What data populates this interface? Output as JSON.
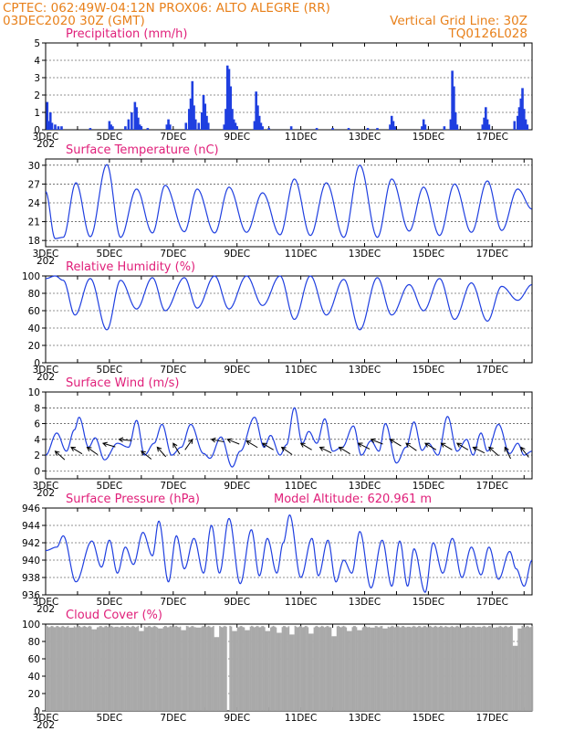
{
  "header": {
    "line1": "CPTEC:   062:49W-04:12N   PROX06: ALTO ALEGRE (RR)",
    "line2_left": "03DEC2020 30Z (GMT)",
    "line2_right": "Vertical Grid Line: 30Z",
    "line3_right": "TQ0126L028"
  },
  "colors": {
    "header": "#e8801a",
    "title": "#e0207a",
    "series": "#1f3fe0",
    "cloud": "#a9a9a9",
    "axis": "#000000"
  },
  "x_ticks": [
    "3DEC",
    "5DEC",
    "7DEC",
    "9DEC",
    "11DEC",
    "13DEC",
    "15DEC",
    "17DEC"
  ],
  "x_sub": "202",
  "chart_data": [
    {
      "id": "precip",
      "type": "bar",
      "title": "Precipitation (mm/h)",
      "ylim": [
        0,
        5
      ],
      "yticks": [
        0,
        1,
        2,
        3,
        4,
        5
      ],
      "xlim": [
        3,
        18.25
      ],
      "events": [
        [
          3.05,
          1.6
        ],
        [
          3.1,
          0.5
        ],
        [
          3.15,
          1.0
        ],
        [
          3.2,
          0.4
        ],
        [
          3.3,
          0.3
        ],
        [
          3.4,
          0.2
        ],
        [
          3.5,
          0.2
        ],
        [
          4.4,
          0.1
        ],
        [
          5.0,
          0.5
        ],
        [
          5.05,
          0.3
        ],
        [
          5.1,
          0.2
        ],
        [
          5.5,
          0.2
        ],
        [
          5.6,
          0.6
        ],
        [
          5.7,
          1.0
        ],
        [
          5.8,
          1.6
        ],
        [
          5.85,
          1.3
        ],
        [
          5.9,
          0.7
        ],
        [
          5.95,
          0.3
        ],
        [
          6.0,
          0.2
        ],
        [
          6.2,
          0.1
        ],
        [
          6.8,
          0.3
        ],
        [
          6.85,
          0.6
        ],
        [
          6.9,
          0.3
        ],
        [
          7.4,
          0.4
        ],
        [
          7.5,
          1.2
        ],
        [
          7.55,
          1.8
        ],
        [
          7.6,
          2.8
        ],
        [
          7.65,
          1.4
        ],
        [
          7.7,
          0.6
        ],
        [
          7.8,
          0.4
        ],
        [
          7.9,
          1.0
        ],
        [
          7.95,
          2.0
        ],
        [
          8.0,
          1.5
        ],
        [
          8.05,
          0.8
        ],
        [
          8.1,
          0.4
        ],
        [
          8.6,
          0.3
        ],
        [
          8.65,
          1.2
        ],
        [
          8.7,
          3.7
        ],
        [
          8.75,
          3.5
        ],
        [
          8.8,
          2.5
        ],
        [
          8.85,
          1.2
        ],
        [
          8.9,
          0.6
        ],
        [
          8.95,
          0.4
        ],
        [
          9.0,
          0.2
        ],
        [
          9.55,
          0.5
        ],
        [
          9.6,
          2.2
        ],
        [
          9.65,
          1.4
        ],
        [
          9.7,
          0.8
        ],
        [
          9.75,
          0.4
        ],
        [
          9.8,
          0.2
        ],
        [
          10.0,
          0.1
        ],
        [
          10.7,
          0.2
        ],
        [
          11.5,
          0.1
        ],
        [
          12.0,
          0.1
        ],
        [
          12.5,
          0.1
        ],
        [
          13.1,
          0.1
        ],
        [
          13.4,
          0.1
        ],
        [
          13.8,
          0.3
        ],
        [
          13.85,
          0.8
        ],
        [
          13.9,
          0.5
        ],
        [
          13.95,
          0.2
        ],
        [
          14.8,
          0.2
        ],
        [
          14.85,
          0.6
        ],
        [
          14.9,
          0.3
        ],
        [
          15.5,
          0.2
        ],
        [
          15.7,
          0.6
        ],
        [
          15.75,
          3.4
        ],
        [
          15.8,
          2.5
        ],
        [
          15.85,
          1.0
        ],
        [
          15.9,
          0.3
        ],
        [
          16.7,
          0.3
        ],
        [
          16.75,
          0.7
        ],
        [
          16.8,
          1.3
        ],
        [
          16.85,
          0.6
        ],
        [
          16.9,
          0.3
        ],
        [
          17.7,
          0.5
        ],
        [
          17.8,
          0.8
        ],
        [
          17.85,
          1.3
        ],
        [
          17.9,
          1.8
        ],
        [
          17.95,
          2.4
        ],
        [
          18.0,
          1.2
        ],
        [
          18.05,
          0.6
        ],
        [
          18.1,
          0.3
        ]
      ]
    },
    {
      "id": "temp",
      "type": "line",
      "title": "Surface Temperature (nC)",
      "ylim": [
        17,
        31
      ],
      "yticks": [
        18,
        21,
        24,
        27,
        30
      ],
      "xlim": [
        3,
        18.25
      ],
      "extrema": [
        [
          3.0,
          25.8
        ],
        [
          3.3,
          18.3
        ],
        [
          3.55,
          18.5
        ],
        [
          3.95,
          27.2
        ],
        [
          4.4,
          18.6
        ],
        [
          4.92,
          30.1
        ],
        [
          5.35,
          18.5
        ],
        [
          5.85,
          26.2
        ],
        [
          6.35,
          19.2
        ],
        [
          6.75,
          26.8
        ],
        [
          7.35,
          19.4
        ],
        [
          7.75,
          26.2
        ],
        [
          8.3,
          19.2
        ],
        [
          8.75,
          26.5
        ],
        [
          9.3,
          19.3
        ],
        [
          9.8,
          25.6
        ],
        [
          10.35,
          18.9
        ],
        [
          10.8,
          27.8
        ],
        [
          11.3,
          18.8
        ],
        [
          11.8,
          27.2
        ],
        [
          12.35,
          18.5
        ],
        [
          12.85,
          30.0
        ],
        [
          13.4,
          18.5
        ],
        [
          13.85,
          27.8
        ],
        [
          14.4,
          19.5
        ],
        [
          14.85,
          26.5
        ],
        [
          15.35,
          18.8
        ],
        [
          15.82,
          27.0
        ],
        [
          16.35,
          19.3
        ],
        [
          16.85,
          27.5
        ],
        [
          17.3,
          19.6
        ],
        [
          17.8,
          26.2
        ],
        [
          18.25,
          23.0
        ]
      ]
    },
    {
      "id": "rh",
      "type": "line",
      "title": "Relative Humidity (%)",
      "ylim": [
        0,
        100
      ],
      "yticks": [
        0,
        20,
        40,
        60,
        80,
        100
      ],
      "xlim": [
        3,
        18.25
      ],
      "extrema": [
        [
          3.0,
          97
        ],
        [
          3.3,
          100
        ],
        [
          3.55,
          95
        ],
        [
          3.92,
          55
        ],
        [
          4.4,
          97
        ],
        [
          4.92,
          38
        ],
        [
          5.35,
          95
        ],
        [
          5.85,
          62
        ],
        [
          6.35,
          98
        ],
        [
          6.75,
          60
        ],
        [
          7.35,
          98
        ],
        [
          7.75,
          63
        ],
        [
          8.3,
          100
        ],
        [
          8.75,
          62
        ],
        [
          9.3,
          100
        ],
        [
          9.8,
          66
        ],
        [
          10.35,
          100
        ],
        [
          10.8,
          50
        ],
        [
          11.3,
          100
        ],
        [
          11.8,
          55
        ],
        [
          12.35,
          96
        ],
        [
          12.85,
          38
        ],
        [
          13.4,
          98
        ],
        [
          13.85,
          55
        ],
        [
          14.4,
          90
        ],
        [
          14.85,
          60
        ],
        [
          15.35,
          97
        ],
        [
          15.82,
          50
        ],
        [
          16.35,
          92
        ],
        [
          16.85,
          48
        ],
        [
          17.3,
          88
        ],
        [
          17.8,
          72
        ],
        [
          18.25,
          90
        ]
      ]
    },
    {
      "id": "wind",
      "type": "line",
      "title": "Surface Wind (m/s)",
      "ylim": [
        -1,
        10
      ],
      "yticks": [
        0,
        2,
        4,
        6,
        8,
        10
      ],
      "xlim": [
        3,
        18.25
      ],
      "extrema": [
        [
          3.0,
          2.0
        ],
        [
          3.35,
          4.8
        ],
        [
          3.65,
          2.5
        ],
        [
          3.9,
          5.2
        ],
        [
          4.05,
          6.8
        ],
        [
          4.35,
          3.0
        ],
        [
          4.55,
          4.2
        ],
        [
          4.85,
          1.4
        ],
        [
          5.25,
          3.5
        ],
        [
          5.6,
          3.0
        ],
        [
          5.85,
          6.4
        ],
        [
          6.1,
          2.0
        ],
        [
          6.4,
          3.5
        ],
        [
          6.65,
          5.9
        ],
        [
          6.95,
          2.0
        ],
        [
          7.25,
          3.0
        ],
        [
          7.55,
          5.9
        ],
        [
          7.95,
          2.2
        ],
        [
          8.15,
          1.6
        ],
        [
          8.5,
          4.3
        ],
        [
          8.85,
          0.5
        ],
        [
          9.1,
          2.5
        ],
        [
          9.55,
          6.8
        ],
        [
          9.85,
          3.0
        ],
        [
          10.05,
          4.5
        ],
        [
          10.35,
          2.0
        ],
        [
          10.55,
          3.3
        ],
        [
          10.8,
          8.0
        ],
        [
          11.05,
          3.5
        ],
        [
          11.25,
          5.0
        ],
        [
          11.5,
          3.5
        ],
        [
          11.75,
          6.6
        ],
        [
          12.0,
          2.5
        ],
        [
          12.3,
          3.0
        ],
        [
          12.65,
          5.7
        ],
        [
          12.9,
          2.0
        ],
        [
          13.2,
          3.8
        ],
        [
          13.45,
          2.5
        ],
        [
          13.65,
          6.0
        ],
        [
          14.0,
          1.0
        ],
        [
          14.3,
          3.0
        ],
        [
          14.55,
          6.2
        ],
        [
          14.8,
          2.6
        ],
        [
          15.0,
          3.5
        ],
        [
          15.3,
          2.0
        ],
        [
          15.6,
          6.9
        ],
        [
          15.9,
          2.5
        ],
        [
          16.2,
          4.0
        ],
        [
          16.4,
          2.0
        ],
        [
          16.65,
          4.8
        ],
        [
          16.85,
          2.5
        ],
        [
          17.2,
          5.9
        ],
        [
          17.55,
          2.2
        ],
        [
          17.8,
          3.5
        ],
        [
          18.0,
          2.0
        ],
        [
          18.25,
          2.5
        ]
      ],
      "vectors": [
        [
          3.3,
          2.5,
          1.0,
          -0.9
        ],
        [
          3.8,
          3.0,
          1.0,
          -0.6
        ],
        [
          4.3,
          3.0,
          1.0,
          -0.7
        ],
        [
          4.8,
          3.5,
          1.0,
          -0.3
        ],
        [
          5.3,
          4.0,
          1.0,
          -0.1
        ],
        [
          6.0,
          2.5,
          1.0,
          -0.8
        ],
        [
          6.5,
          3.0,
          0.9,
          -1.0
        ],
        [
          7.0,
          3.5,
          0.6,
          -1.0
        ],
        [
          7.6,
          4.0,
          -0.7,
          -1.0
        ],
        [
          8.2,
          4.0,
          1.0,
          -0.2
        ],
        [
          8.7,
          4.0,
          1.0,
          -0.4
        ],
        [
          9.3,
          3.8,
          1.0,
          -0.6
        ],
        [
          9.8,
          3.5,
          1.0,
          -0.6
        ],
        [
          10.4,
          3.0,
          1.0,
          -0.7
        ],
        [
          11.0,
          3.5,
          1.0,
          -0.6
        ],
        [
          11.6,
          3.0,
          1.0,
          -0.5
        ],
        [
          12.2,
          3.0,
          1.0,
          -0.6
        ],
        [
          12.8,
          3.5,
          1.0,
          -0.5
        ],
        [
          13.2,
          4.0,
          1.0,
          -0.4
        ],
        [
          13.8,
          4.0,
          1.0,
          -0.6
        ],
        [
          14.3,
          3.5,
          1.0,
          -0.7
        ],
        [
          14.9,
          3.5,
          1.0,
          -0.6
        ],
        [
          15.4,
          3.5,
          1.0,
          -0.6
        ],
        [
          15.9,
          3.5,
          1.0,
          -0.6
        ],
        [
          16.4,
          3.0,
          1.0,
          -0.5
        ],
        [
          16.9,
          3.0,
          0.9,
          -0.8
        ],
        [
          17.4,
          3.0,
          0.5,
          -1.0
        ],
        [
          17.9,
          3.0,
          0.7,
          -0.9
        ]
      ]
    },
    {
      "id": "pres",
      "type": "line",
      "title": "Surface Pressure (hPa)",
      "annotation": "Model Altitude:  620.961  m",
      "ylim": [
        936,
        946
      ],
      "yticks": [
        936,
        938,
        940,
        942,
        944,
        946
      ],
      "xlim": [
        3,
        18.25
      ],
      "extrema": [
        [
          3.0,
          941.1
        ],
        [
          3.35,
          941.5
        ],
        [
          3.55,
          942.8
        ],
        [
          3.95,
          937.5
        ],
        [
          4.45,
          942.2
        ],
        [
          4.75,
          939.2
        ],
        [
          5.0,
          942.3
        ],
        [
          5.25,
          938.5
        ],
        [
          5.5,
          941.5
        ],
        [
          5.75,
          939.5
        ],
        [
          6.05,
          943.2
        ],
        [
          6.35,
          940.5
        ],
        [
          6.55,
          944.5
        ],
        [
          6.85,
          937.5
        ],
        [
          7.1,
          942.8
        ],
        [
          7.35,
          939.0
        ],
        [
          7.65,
          942.5
        ],
        [
          7.95,
          938.5
        ],
        [
          8.2,
          944.0
        ],
        [
          8.45,
          938.5
        ],
        [
          8.75,
          944.8
        ],
        [
          9.1,
          937.3
        ],
        [
          9.45,
          943.5
        ],
        [
          9.7,
          938.2
        ],
        [
          9.95,
          942.5
        ],
        [
          10.25,
          938.5
        ],
        [
          10.45,
          942.0
        ],
        [
          10.65,
          945.2
        ],
        [
          11.0,
          938.0
        ],
        [
          11.35,
          942.5
        ],
        [
          11.55,
          938.2
        ],
        [
          11.85,
          942.3
        ],
        [
          12.1,
          937.5
        ],
        [
          12.35,
          940.0
        ],
        [
          12.6,
          938.5
        ],
        [
          12.85,
          943.3
        ],
        [
          13.2,
          936.8
        ],
        [
          13.55,
          942.3
        ],
        [
          13.85,
          937.0
        ],
        [
          14.1,
          942.2
        ],
        [
          14.35,
          937.0
        ],
        [
          14.55,
          941.3
        ],
        [
          14.9,
          936.3
        ],
        [
          15.15,
          942.0
        ],
        [
          15.45,
          938.5
        ],
        [
          15.75,
          942.5
        ],
        [
          16.05,
          938.0
        ],
        [
          16.35,
          941.5
        ],
        [
          16.65,
          938.3
        ],
        [
          16.9,
          941.5
        ],
        [
          17.2,
          937.8
        ],
        [
          17.55,
          941.0
        ],
        [
          17.75,
          939.0
        ],
        [
          18.0,
          937.0
        ],
        [
          18.25,
          940.0
        ]
      ]
    },
    {
      "id": "cloud",
      "type": "area",
      "title": "Cloud Cover (%)",
      "ylim": [
        0,
        100
      ],
      "yticks": [
        0,
        20,
        40,
        60,
        80,
        100
      ],
      "xlim": [
        3,
        18.25
      ],
      "base": 98,
      "dips": [
        [
          3.8,
          96
        ],
        [
          4.5,
          94
        ],
        [
          5.2,
          97
        ],
        [
          6.0,
          92
        ],
        [
          6.6,
          95
        ],
        [
          7.3,
          93
        ],
        [
          7.8,
          96
        ],
        [
          8.35,
          85
        ],
        [
          8.7,
          0
        ],
        [
          8.9,
          92
        ],
        [
          9.3,
          93
        ],
        [
          9.95,
          92
        ],
        [
          10.3,
          90
        ],
        [
          10.7,
          88
        ],
        [
          11.3,
          89
        ],
        [
          12.0,
          86
        ],
        [
          12.5,
          92
        ],
        [
          12.8,
          93
        ],
        [
          13.2,
          96
        ],
        [
          13.6,
          95
        ],
        [
          14.3,
          97
        ],
        [
          15.0,
          98
        ],
        [
          15.6,
          97
        ],
        [
          16.0,
          96
        ],
        [
          16.5,
          97
        ],
        [
          17.0,
          96
        ],
        [
          17.7,
          75
        ],
        [
          17.8,
          95
        ]
      ]
    }
  ]
}
